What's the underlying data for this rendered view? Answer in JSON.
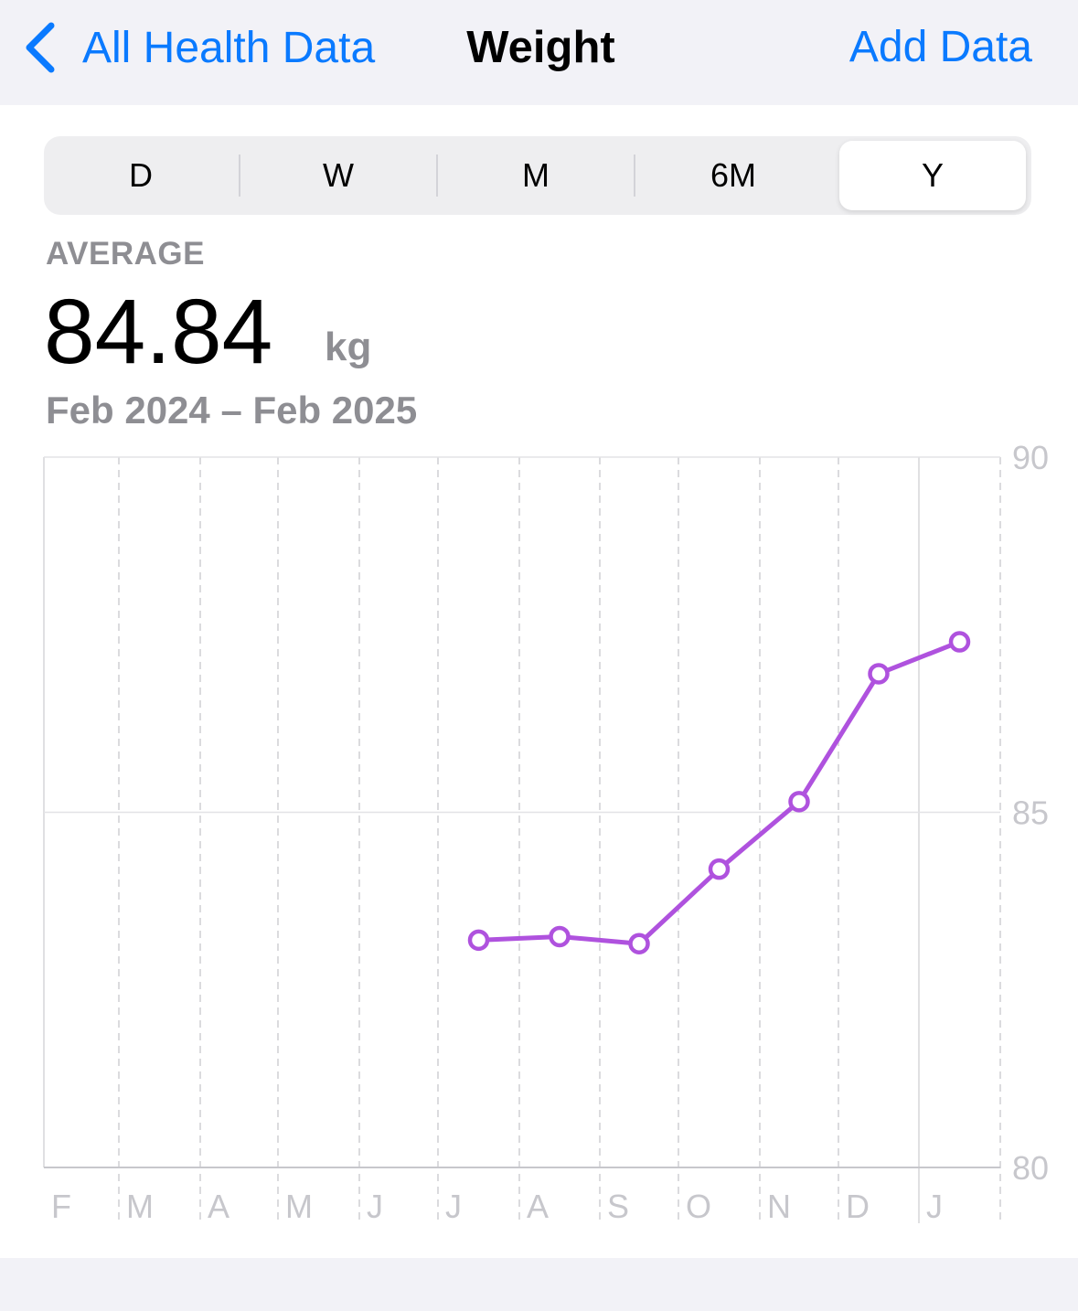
{
  "nav": {
    "back_label": "All Health Data",
    "title": "Weight",
    "add_label": "Add Data",
    "back_icon": "chevron-left-icon"
  },
  "ranges": {
    "options": [
      "D",
      "W",
      "M",
      "6M",
      "Y"
    ],
    "selected": "Y"
  },
  "summary": {
    "label": "AVERAGE",
    "value": "84.84",
    "unit": "kg",
    "date_range": "Feb 2024 – Feb 2025"
  },
  "colors": {
    "accent": "#0a7aff",
    "series": "#af52de"
  },
  "chart_data": {
    "type": "line",
    "categories": [
      "F",
      "M",
      "A",
      "M",
      "J",
      "J",
      "A",
      "S",
      "O",
      "N",
      "D",
      "J"
    ],
    "x": [
      "2024-07",
      "2024-08",
      "2024-09",
      "2024-10",
      "2024-11",
      "2024-12",
      "2025-01"
    ],
    "values": [
      83.2,
      83.25,
      83.15,
      84.2,
      85.15,
      86.95,
      87.4
    ],
    "yticks": [
      80,
      85,
      90
    ],
    "ylim": [
      80,
      90
    ],
    "y_axis_position": "right",
    "grid": true,
    "title": "",
    "xlabel": "",
    "ylabel": ""
  }
}
